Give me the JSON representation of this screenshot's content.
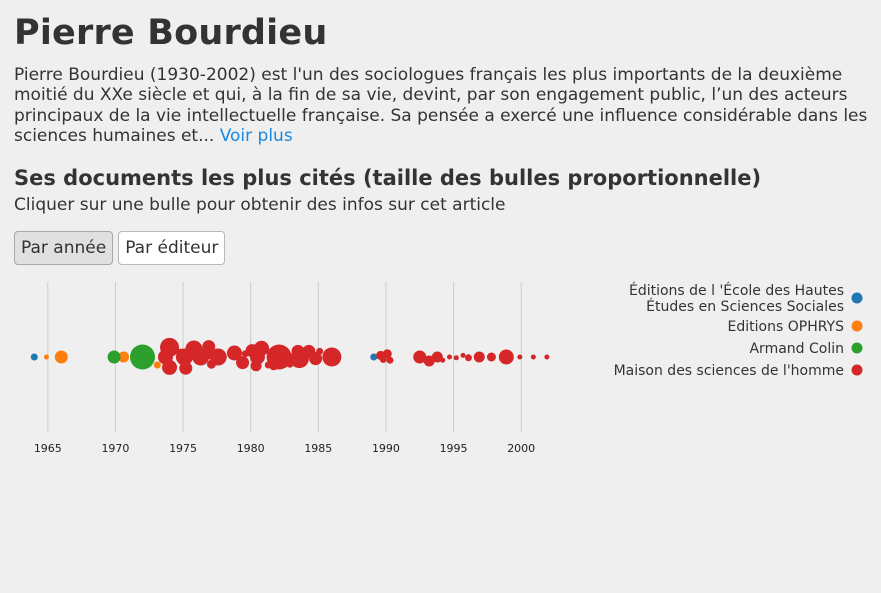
{
  "page": {
    "title": "Pierre Bourdieu",
    "intro": "Pierre Bourdieu (1930-2002) est l'un des sociologues français les plus importants de la deuxième moitié du XXe siècle et qui, à la fin de sa vie, devint, par son engagement public, l’un des acteurs principaux de la vie intellectuelle française. Sa pensée a exercé une influence considérable dans les sciences humaines et...",
    "more_link": "Voir plus",
    "section_title": "Ses documents les plus cités (taille des bulles proportionnelle)",
    "hint": "Cliquer sur une bulle pour obtenir des infos sur cet article",
    "buttons": {
      "by_year": "Par année",
      "by_publisher": "Par éditeur"
    }
  },
  "colors": {
    "ehess": "#1f77b4",
    "ophrys": "#ff7f0e",
    "armand_colin": "#2ca02c",
    "msh": "#d62728",
    "gridline": "#cccccc",
    "link": "#1a88e0"
  },
  "chart_data": {
    "type": "scatter",
    "x_ticks": [
      1965,
      1970,
      1975,
      1980,
      1985,
      1990,
      1995,
      2000
    ],
    "xlim": [
      1962.5,
      2002.5
    ],
    "legend_position": "top-right",
    "series": [
      {
        "key": "ehess",
        "name": "Éditions de l 'École des Hautes Études en Sciences Sociales",
        "points": [
          {
            "x": 1964.0,
            "y": 0,
            "size": 3
          },
          {
            "x": 1989.1,
            "y": 0,
            "size": 3
          }
        ]
      },
      {
        "key": "ophrys",
        "name": "Editions OPHRYS",
        "points": [
          {
            "x": 1964.9,
            "y": 0,
            "size": 2
          },
          {
            "x": 1966.0,
            "y": 0,
            "size": 6
          },
          {
            "x": 1970.6,
            "y": 0,
            "size": 5
          },
          {
            "x": 1973.1,
            "y": -0.5,
            "size": 3
          }
        ]
      },
      {
        "key": "armand_colin",
        "name": "Armand Colin",
        "points": [
          {
            "x": 1969.9,
            "y": 0,
            "size": 6
          },
          {
            "x": 1972.0,
            "y": 0,
            "size": 12
          }
        ]
      },
      {
        "key": "msh",
        "name": "Maison des sciences de l'homme",
        "points": [
          {
            "x": 1974.0,
            "y": 0.6,
            "size": 9
          },
          {
            "x": 1973.7,
            "y": 0,
            "size": 7
          },
          {
            "x": 1974.0,
            "y": -0.65,
            "size": 7
          },
          {
            "x": 1974.8,
            "y": 0.3,
            "size": 3
          },
          {
            "x": 1975.1,
            "y": 0,
            "size": 8
          },
          {
            "x": 1975.2,
            "y": -0.7,
            "size": 6
          },
          {
            "x": 1975.8,
            "y": 0.5,
            "size": 8
          },
          {
            "x": 1976.3,
            "y": 0,
            "size": 8
          },
          {
            "x": 1976.9,
            "y": 0.65,
            "size": 6
          },
          {
            "x": 1977.0,
            "y": 0.2,
            "size": 5
          },
          {
            "x": 1977.1,
            "y": -0.45,
            "size": 4
          },
          {
            "x": 1977.6,
            "y": 0,
            "size": 8
          },
          {
            "x": 1978.8,
            "y": 0.25,
            "size": 7
          },
          {
            "x": 1979.4,
            "y": -0.35,
            "size": 6
          },
          {
            "x": 1979.6,
            "y": 0.2,
            "size": 3
          },
          {
            "x": 1980.1,
            "y": 0.4,
            "size": 6
          },
          {
            "x": 1980.4,
            "y": -0.55,
            "size": 5
          },
          {
            "x": 1980.5,
            "y": 0,
            "size": 7
          },
          {
            "x": 1980.8,
            "y": 0.55,
            "size": 7
          },
          {
            "x": 1981.3,
            "y": -0.5,
            "size": 3
          },
          {
            "x": 1981.6,
            "y": 0.2,
            "size": 5
          },
          {
            "x": 1981.7,
            "y": -0.55,
            "size": 4
          },
          {
            "x": 1982.1,
            "y": 0,
            "size": 12
          },
          {
            "x": 1982.9,
            "y": -0.45,
            "size": 3
          },
          {
            "x": 1983.5,
            "y": 0.35,
            "size": 6
          },
          {
            "x": 1983.6,
            "y": -0.1,
            "size": 9
          },
          {
            "x": 1984.3,
            "y": 0.35,
            "size": 6
          },
          {
            "x": 1984.8,
            "y": -0.1,
            "size": 6
          },
          {
            "x": 1985.1,
            "y": 0.35,
            "size": 3
          },
          {
            "x": 1986.0,
            "y": 0,
            "size": 9
          },
          {
            "x": 1989.6,
            "y": 0.1,
            "size": 4
          },
          {
            "x": 1990.1,
            "y": 0.2,
            "size": 4
          },
          {
            "x": 1989.8,
            "y": -0.15,
            "size": 3
          },
          {
            "x": 1990.3,
            "y": -0.2,
            "size": 3
          },
          {
            "x": 1992.5,
            "y": 0,
            "size": 6
          },
          {
            "x": 1993.2,
            "y": -0.25,
            "size": 5
          },
          {
            "x": 1993.8,
            "y": 0,
            "size": 5
          },
          {
            "x": 1994.2,
            "y": -0.2,
            "size": 2
          },
          {
            "x": 1994.7,
            "y": 0,
            "size": 2
          },
          {
            "x": 1995.2,
            "y": -0.05,
            "size": 2
          },
          {
            "x": 1995.7,
            "y": 0.1,
            "size": 2
          },
          {
            "x": 1996.1,
            "y": -0.05,
            "size": 3
          },
          {
            "x": 1996.9,
            "y": 0,
            "size": 5
          },
          {
            "x": 1997.8,
            "y": 0,
            "size": 4
          },
          {
            "x": 1998.9,
            "y": 0,
            "size": 7
          },
          {
            "x": 1999.9,
            "y": 0,
            "size": 2
          },
          {
            "x": 2000.9,
            "y": 0,
            "size": 2
          },
          {
            "x": 2001.9,
            "y": 0,
            "size": 2
          }
        ]
      }
    ]
  }
}
